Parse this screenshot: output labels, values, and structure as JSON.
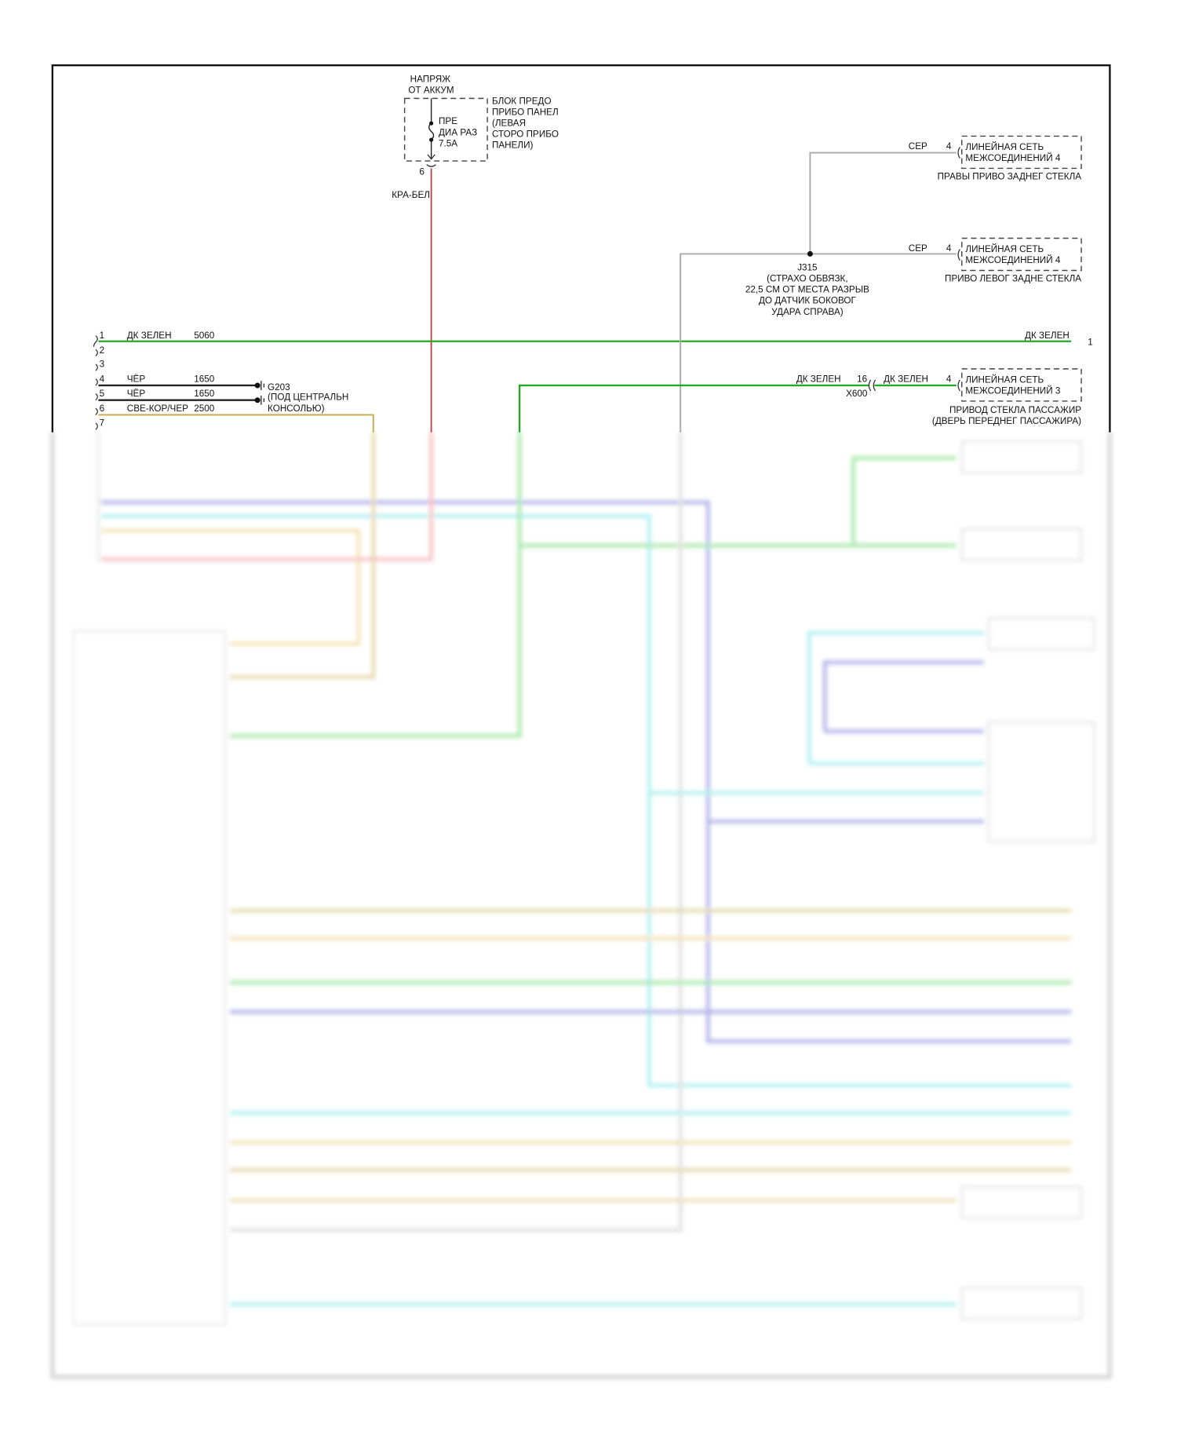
{
  "colors": {
    "dk_green": "#22aa22",
    "red_white": "#cc3333",
    "gray": "#aaaaaa",
    "black": "#222222",
    "yellow": "#c8a84a",
    "blue": "#5555cc",
    "cyan": "#55dddd"
  },
  "fuse_source": {
    "line1": "НАПРЯЖ",
    "line2": "ОТ АККУМ"
  },
  "fuse": {
    "line1": "ПРЕ",
    "line2": "ДИА РАЗ",
    "line3": "7.5А"
  },
  "fuse_block": {
    "lines": [
      "БЛОК ПРЕДО",
      "ПРИБО ПАНЕЛ",
      "(ЛЕВАЯ",
      "СТОРО ПРИБО",
      "ПАНЕЛИ)"
    ]
  },
  "fuse_pin": "6",
  "fuse_wire": "КРА-БЕЛ",
  "connector_pins": [
    "1",
    "2",
    "3",
    "4",
    "5",
    "6",
    "7"
  ],
  "wires_left": [
    {
      "pin": "1",
      "color": "ДК ЗЕЛЕН",
      "circuit": "5060"
    },
    {
      "pin": "4",
      "color": "ЧЁР",
      "circuit": "1650"
    },
    {
      "pin": "5",
      "color": "ЧЁР",
      "circuit": "1650"
    },
    {
      "pin": "6",
      "color": "СВЕ-КОР/ЧЕР",
      "circuit": "2500"
    }
  ],
  "ground": {
    "lines": [
      "G203",
      "(ПОД ЦЕНТРАЛЬН",
      "КОНСОЛЬЮ)"
    ]
  },
  "right_wire_1": {
    "color": "ДК ЗЕЛЕН",
    "ref": "1"
  },
  "gray_wires": [
    {
      "color": "СЕР",
      "pin": "4",
      "box": [
        "ЛИНЕЙНАЯ СЕТЬ",
        "МЕЖСОЕДИНЕНИЙ 4"
      ],
      "caption": [
        "ПРАВЫ ПРИВО ЗАДНЕГ СТЕКЛА"
      ]
    },
    {
      "color": "СЕР",
      "pin": "4",
      "box": [
        "ЛИНЕЙНАЯ СЕТЬ",
        "МЕЖСОЕДИНЕНИЙ 4"
      ],
      "caption": [
        "ПРИВО ЛЕВОГ ЗАДНЕ СТЕКЛА"
      ]
    }
  ],
  "splice": {
    "lines": [
      "J315",
      "(СТРАХО ОБВЯЗК,",
      "22,5 СМ ОТ МЕСТА РАЗРЫВ",
      "ДО ДАТЧИК БОКОВОГ",
      "УДАРА СПРАВА)"
    ]
  },
  "green_wire_2": {
    "left_color": "ДК ЗЕЛЕН",
    "inline_pin": "16",
    "inline_connector": "X600",
    "right_color": "ДК ЗЕЛЕН",
    "pin": "4",
    "box": [
      "ЛИНЕЙНАЯ СЕТЬ",
      "МЕЖСОЕДИНЕНИЙ 3"
    ],
    "caption": [
      "ПРИВОД СТЕКЛА ПАССАЖИР",
      "(ДВЕРЬ ПЕРЕДНЕГ ПАССАЖИРА)"
    ]
  }
}
